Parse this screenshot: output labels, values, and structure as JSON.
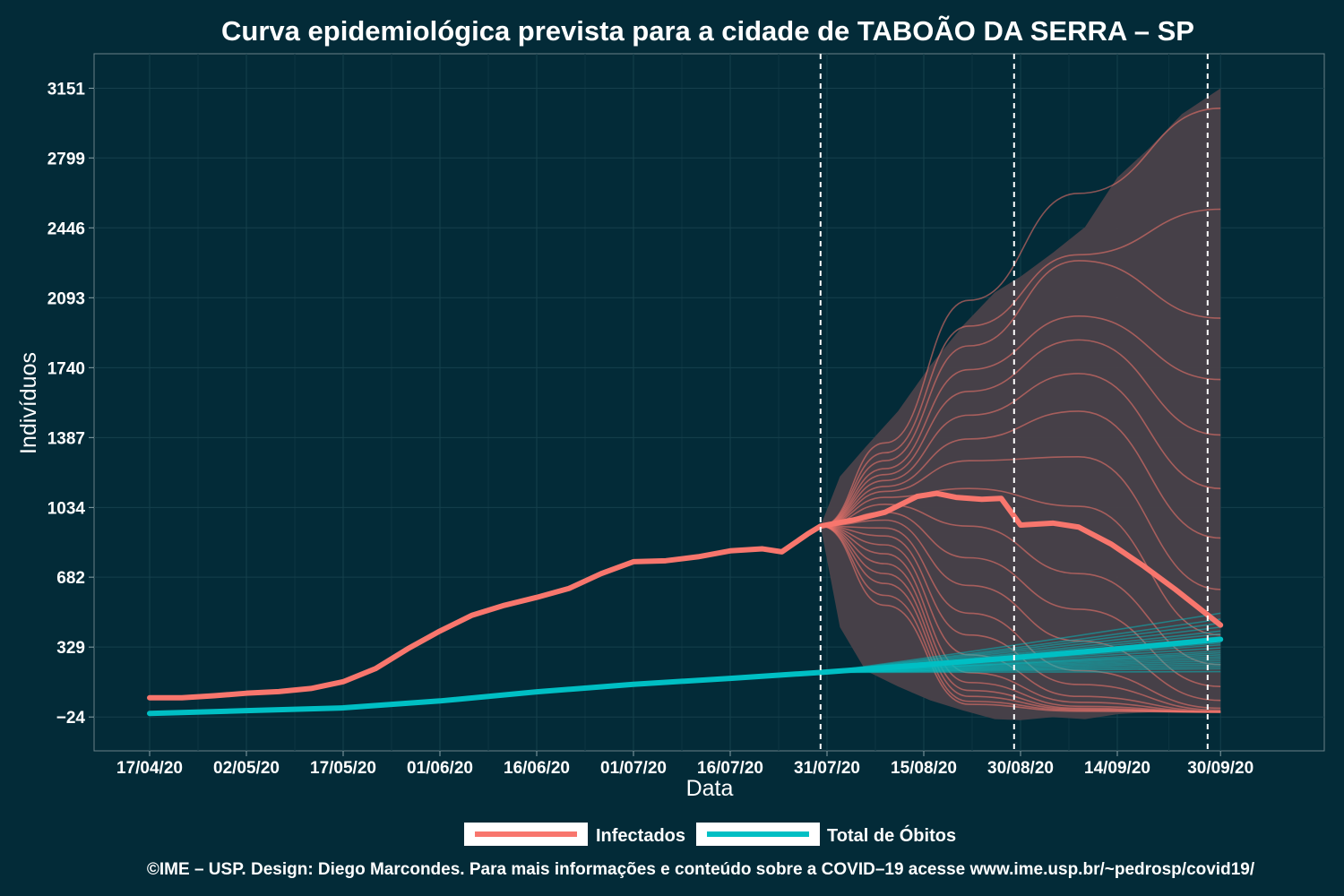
{
  "chart_data": {
    "type": "line",
    "title": "Curva epidemiológica prevista para a cidade de TABOÃO DA SERRA – SP",
    "xlabel": "Data",
    "ylabel": "Indivíduos",
    "x_axis": {
      "type": "date",
      "start": "2020-04-17",
      "end": "2020-09-30",
      "tick_labels": [
        "17/04/20",
        "02/05/20",
        "17/05/20",
        "01/06/20",
        "16/06/20",
        "01/07/20",
        "16/07/20",
        "31/07/20",
        "15/08/20",
        "30/08/20",
        "14/09/20",
        "30/09/20"
      ],
      "tick_dates": [
        "2020-04-17",
        "2020-05-02",
        "2020-05-17",
        "2020-06-01",
        "2020-06-16",
        "2020-07-01",
        "2020-07-16",
        "2020-07-31",
        "2020-08-15",
        "2020-08-30",
        "2020-09-14",
        "2020-09-30"
      ]
    },
    "y_axis": {
      "tick_labels": [
        "−24",
        "329",
        "682",
        "1034",
        "1387",
        "1740",
        "2093",
        "2446",
        "2799",
        "3151"
      ],
      "tick_values": [
        -24,
        329,
        682,
        1034,
        1387,
        1740,
        2093,
        2446,
        2799,
        3151
      ],
      "ylim": [
        -195,
        3325
      ]
    },
    "grid": true,
    "vertical_reference_dates": [
      "2020-07-30",
      "2020-08-29",
      "2020-09-28"
    ],
    "series": [
      {
        "name": "Infectados",
        "color": "#f8766d",
        "points": [
          [
            "2020-04-17",
            73
          ],
          [
            "2020-04-22",
            73
          ],
          [
            "2020-04-27",
            83
          ],
          [
            "2020-05-02",
            96
          ],
          [
            "2020-05-07",
            104
          ],
          [
            "2020-05-12",
            120
          ],
          [
            "2020-05-17",
            154
          ],
          [
            "2020-05-22",
            220
          ],
          [
            "2020-05-27",
            320
          ],
          [
            "2020-06-01",
            410
          ],
          [
            "2020-06-06",
            490
          ],
          [
            "2020-06-11",
            540
          ],
          [
            "2020-06-16",
            580
          ],
          [
            "2020-06-21",
            625
          ],
          [
            "2020-06-26",
            700
          ],
          [
            "2020-07-01",
            760
          ],
          [
            "2020-07-06",
            765
          ],
          [
            "2020-07-11",
            785
          ],
          [
            "2020-07-16",
            815
          ],
          [
            "2020-07-21",
            825
          ],
          [
            "2020-07-24",
            810
          ],
          [
            "2020-07-28",
            900
          ],
          [
            "2020-07-30",
            940
          ],
          [
            "2020-08-04",
            970
          ],
          [
            "2020-08-09",
            1010
          ],
          [
            "2020-08-14",
            1090
          ],
          [
            "2020-08-17",
            1105
          ],
          [
            "2020-08-20",
            1085
          ],
          [
            "2020-08-24",
            1075
          ],
          [
            "2020-08-27",
            1080
          ],
          [
            "2020-08-30",
            945
          ],
          [
            "2020-09-04",
            955
          ],
          [
            "2020-09-08",
            935
          ],
          [
            "2020-09-13",
            850
          ],
          [
            "2020-09-18",
            740
          ],
          [
            "2020-09-23",
            620
          ],
          [
            "2020-09-30",
            440
          ]
        ]
      },
      {
        "name": "Total de Óbitos",
        "color": "#00bfc4",
        "points": [
          [
            "2020-04-17",
            -6
          ],
          [
            "2020-05-02",
            8
          ],
          [
            "2020-05-17",
            22
          ],
          [
            "2020-06-01",
            57
          ],
          [
            "2020-06-16",
            103
          ],
          [
            "2020-07-01",
            141
          ],
          [
            "2020-07-16",
            171
          ],
          [
            "2020-07-30",
            201
          ],
          [
            "2020-08-14",
            237
          ],
          [
            "2020-08-29",
            275
          ],
          [
            "2020-09-14",
            320
          ],
          [
            "2020-09-30",
            368
          ]
        ]
      }
    ],
    "forecast": {
      "start": "2020-07-30",
      "start_value": 940,
      "band_color": "#4a4149",
      "band": [
        [
          "2020-07-30",
          940,
          940
        ],
        [
          "2020-08-02",
          1190,
          430
        ],
        [
          "2020-08-06",
          1340,
          210
        ],
        [
          "2020-08-11",
          1520,
          130
        ],
        [
          "2020-08-16",
          1750,
          60
        ],
        [
          "2020-08-21",
          1950,
          10
        ],
        [
          "2020-08-26",
          2120,
          -35
        ],
        [
          "2020-08-30",
          2200,
          -40
        ],
        [
          "2020-09-04",
          2320,
          -25
        ],
        [
          "2020-09-09",
          2450,
          -35
        ],
        [
          "2020-09-14",
          2700,
          -10
        ],
        [
          "2020-09-19",
          2850,
          0
        ],
        [
          "2020-09-24",
          3020,
          0
        ],
        [
          "2020-09-30",
          3150,
          0
        ]
      ],
      "infectados_scenarios": [
        [
          940,
          1360,
          2080,
          2620,
          3050
        ],
        [
          940,
          1310,
          1950,
          2310,
          2540
        ],
        [
          940,
          1270,
          1850,
          2280,
          1990
        ],
        [
          940,
          1230,
          1730,
          2000,
          1680
        ],
        [
          940,
          1200,
          1620,
          1880,
          1400
        ],
        [
          940,
          1170,
          1500,
          1710,
          1130
        ],
        [
          940,
          1140,
          1380,
          1520,
          880
        ],
        [
          940,
          1115,
          1270,
          1290,
          620
        ],
        [
          940,
          1085,
          1130,
          1040,
          390
        ],
        [
          940,
          1050,
          940,
          700,
          240
        ],
        [
          940,
          1010,
          780,
          520,
          130
        ],
        [
          940,
          970,
          640,
          360,
          60
        ],
        [
          940,
          930,
          500,
          210,
          20
        ],
        [
          940,
          890,
          390,
          140,
          10
        ],
        [
          940,
          845,
          290,
          80,
          5
        ],
        [
          940,
          800,
          200,
          50,
          2
        ],
        [
          940,
          750,
          150,
          30,
          1
        ],
        [
          940,
          700,
          110,
          20,
          1
        ],
        [
          940,
          650,
          80,
          15,
          1
        ],
        [
          940,
          590,
          55,
          10,
          0
        ],
        [
          940,
          540,
          40,
          5,
          0
        ]
      ],
      "obitos_scenario_endpoints": [
        500,
        470,
        450,
        430,
        410,
        395,
        380,
        365,
        350,
        340,
        325,
        310,
        300,
        290,
        280,
        270,
        260,
        250,
        240,
        230,
        220,
        205
      ]
    }
  },
  "legend": {
    "items": [
      {
        "label": "Infectados",
        "color": "#f8766d"
      },
      {
        "label": "Total de Óbitos",
        "color": "#00bfc4"
      }
    ]
  },
  "caption": "©IME – USP. Design: Diego Marcondes. Para mais informações e conteúdo sobre a COVID–19 acesse www.ime.usp.br/~pedrosp/covid19/"
}
